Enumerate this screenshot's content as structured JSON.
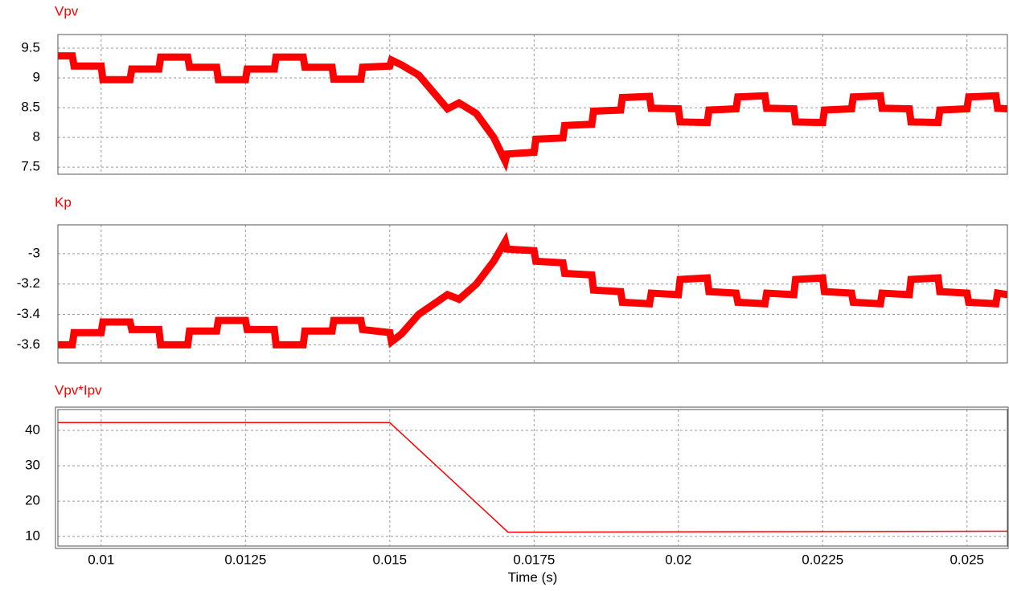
{
  "chart_data": [
    {
      "type": "line",
      "title": "Vpv",
      "series": [
        {
          "name": "Vpv",
          "color": "#ff0000",
          "x": [
            0.00925,
            0.0095,
            0.00953,
            0.01,
            0.01003,
            0.0105,
            0.01053,
            0.011,
            0.01103,
            0.0115,
            0.01153,
            0.012,
            0.01203,
            0.0125,
            0.01253,
            0.013,
            0.01303,
            0.0135,
            0.01353,
            0.014,
            0.01403,
            0.0145,
            0.01453,
            0.015,
            0.01503,
            0.0152,
            0.0155,
            0.016,
            0.0162,
            0.0165,
            0.0168,
            0.017,
            0.01703,
            0.0175,
            0.01753,
            0.018,
            0.01803,
            0.0185,
            0.01853,
            0.019,
            0.01903,
            0.0195,
            0.01953,
            0.02,
            0.02003,
            0.0205,
            0.02053,
            0.021,
            0.02103,
            0.0215,
            0.02153,
            0.022,
            0.02203,
            0.0225,
            0.02253,
            0.023,
            0.02303,
            0.0235,
            0.02353,
            0.024,
            0.02403,
            0.0245,
            0.02453,
            0.025,
            0.02503,
            0.0255,
            0.02553,
            0.0257
          ],
          "values": [
            9.37,
            9.37,
            9.2,
            9.2,
            8.97,
            8.97,
            9.15,
            9.15,
            9.35,
            9.35,
            9.18,
            9.18,
            8.97,
            8.97,
            9.15,
            9.15,
            9.35,
            9.35,
            9.18,
            9.18,
            8.98,
            8.98,
            9.18,
            9.2,
            9.3,
            9.22,
            9.05,
            8.48,
            8.58,
            8.4,
            8.0,
            7.6,
            7.72,
            7.75,
            7.97,
            7.99,
            8.2,
            8.22,
            8.44,
            8.46,
            8.67,
            8.69,
            8.49,
            8.48,
            8.26,
            8.25,
            8.46,
            8.48,
            8.68,
            8.7,
            8.49,
            8.48,
            8.26,
            8.25,
            8.46,
            8.48,
            8.68,
            8.7,
            8.49,
            8.48,
            8.26,
            8.25,
            8.46,
            8.48,
            8.68,
            8.7,
            8.49,
            8.48
          ]
        }
      ],
      "xlim": [
        0.00925,
        0.0257
      ],
      "xticks": [
        0.01,
        0.0125,
        0.015,
        0.0175,
        0.02,
        0.0225,
        0.025
      ],
      "ylim": [
        7.38,
        9.73
      ],
      "yticks": [
        7.5,
        8,
        8.5,
        9,
        9.5
      ],
      "grid": true
    },
    {
      "type": "line",
      "title": "Kp",
      "series": [
        {
          "name": "Kp",
          "color": "#ff0000",
          "x": [
            0.00925,
            0.0095,
            0.00953,
            0.01,
            0.01003,
            0.0105,
            0.01053,
            0.011,
            0.01103,
            0.0115,
            0.01153,
            0.012,
            0.01203,
            0.0125,
            0.01253,
            0.013,
            0.01303,
            0.0135,
            0.01353,
            0.014,
            0.01403,
            0.0145,
            0.01453,
            0.015,
            0.01503,
            0.0152,
            0.0155,
            0.016,
            0.0162,
            0.0165,
            0.0168,
            0.017,
            0.01703,
            0.0175,
            0.01753,
            0.018,
            0.01803,
            0.0185,
            0.01853,
            0.019,
            0.01903,
            0.0195,
            0.01953,
            0.02,
            0.02003,
            0.0205,
            0.02053,
            0.021,
            0.02103,
            0.0215,
            0.02153,
            0.022,
            0.02203,
            0.0225,
            0.02253,
            0.023,
            0.02303,
            0.0235,
            0.02353,
            0.024,
            0.02403,
            0.0245,
            0.02453,
            0.025,
            0.02503,
            0.0255,
            0.02553,
            0.0257
          ],
          "values": [
            -3.6,
            -3.6,
            -3.52,
            -3.52,
            -3.45,
            -3.45,
            -3.5,
            -3.5,
            -3.6,
            -3.6,
            -3.51,
            -3.51,
            -3.44,
            -3.44,
            -3.5,
            -3.5,
            -3.6,
            -3.6,
            -3.51,
            -3.51,
            -3.44,
            -3.44,
            -3.5,
            -3.52,
            -3.58,
            -3.53,
            -3.4,
            -3.27,
            -3.3,
            -3.2,
            -3.05,
            -2.92,
            -2.97,
            -2.98,
            -3.05,
            -3.06,
            -3.13,
            -3.14,
            -3.24,
            -3.25,
            -3.32,
            -3.33,
            -3.26,
            -3.27,
            -3.17,
            -3.16,
            -3.25,
            -3.26,
            -3.32,
            -3.33,
            -3.26,
            -3.27,
            -3.17,
            -3.16,
            -3.25,
            -3.26,
            -3.32,
            -3.33,
            -3.26,
            -3.27,
            -3.17,
            -3.16,
            -3.25,
            -3.26,
            -3.32,
            -3.33,
            -3.26,
            -3.27
          ]
        }
      ],
      "xlim": [
        0.00925,
        0.0257
      ],
      "xticks": [
        0.01,
        0.0125,
        0.015,
        0.0175,
        0.02,
        0.0225,
        0.025
      ],
      "ylim": [
        -3.72,
        -2.81
      ],
      "yticks": [
        -3.6,
        -3.4,
        -3.2,
        -3
      ],
      "grid": true
    },
    {
      "type": "line",
      "title": "Vpv*Ipv",
      "xlabel": "Time (s)",
      "series": [
        {
          "name": "Vpv*Ipv",
          "color": "#ff0000",
          "x": [
            0.00925,
            0.015,
            0.01705,
            0.0257
          ],
          "values": [
            42.2,
            42.2,
            11.2,
            11.5
          ]
        }
      ],
      "xlim": [
        0.00925,
        0.0257
      ],
      "xticks": [
        0.01,
        0.0125,
        0.015,
        0.0175,
        0.02,
        0.0225,
        0.025
      ],
      "ylim": [
        7.3,
        45.9
      ],
      "yticks": [
        10,
        20,
        30,
        40
      ],
      "grid": true
    }
  ]
}
